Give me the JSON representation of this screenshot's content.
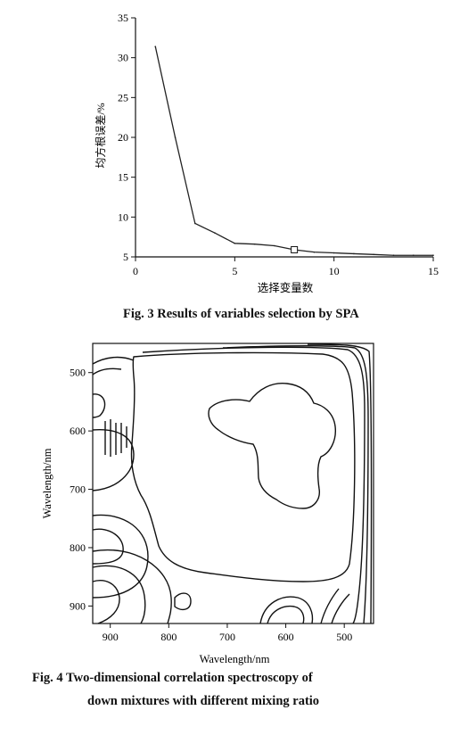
{
  "figure3": {
    "caption": "Fig. 3    Results of variables selection by SPA",
    "chart_data": {
      "type": "line",
      "xlabel": "选择变量数",
      "ylabel": "均方根误差/%",
      "xlim": [
        0,
        15
      ],
      "ylim": [
        5,
        35
      ],
      "xticks": [
        0,
        5,
        10,
        15
      ],
      "yticks": [
        5,
        10,
        15,
        20,
        25,
        30,
        35
      ],
      "x": [
        1,
        2,
        3,
        4,
        5,
        6,
        7,
        8,
        9,
        10,
        11,
        12,
        13,
        14,
        15
      ],
      "series": [
        {
          "values": [
            31.4,
            20.0,
            9.2,
            8.0,
            6.7,
            6.6,
            6.4,
            5.9,
            5.6,
            5.5,
            5.4,
            5.3,
            5.2,
            5.2,
            5.2
          ]
        }
      ],
      "marked_point": {
        "x": 8,
        "y": 5.9
      },
      "grid": false
    }
  },
  "figure4": {
    "caption_line1": "Fig. 4    Two-dimensional correlation spectroscopy of",
    "caption_line2": "down mixtures with different mixing ratio",
    "chart_data": {
      "type": "heatmap",
      "style": "contour",
      "xlabel": "Wavelength/nm",
      "ylabel": "Wavelength/nm",
      "xticks": [
        900,
        800,
        700,
        600,
        500
      ],
      "yticks": [
        500,
        600,
        700,
        800,
        900
      ],
      "xlim": [
        930,
        450
      ],
      "ylim": [
        450,
        930
      ]
    }
  }
}
